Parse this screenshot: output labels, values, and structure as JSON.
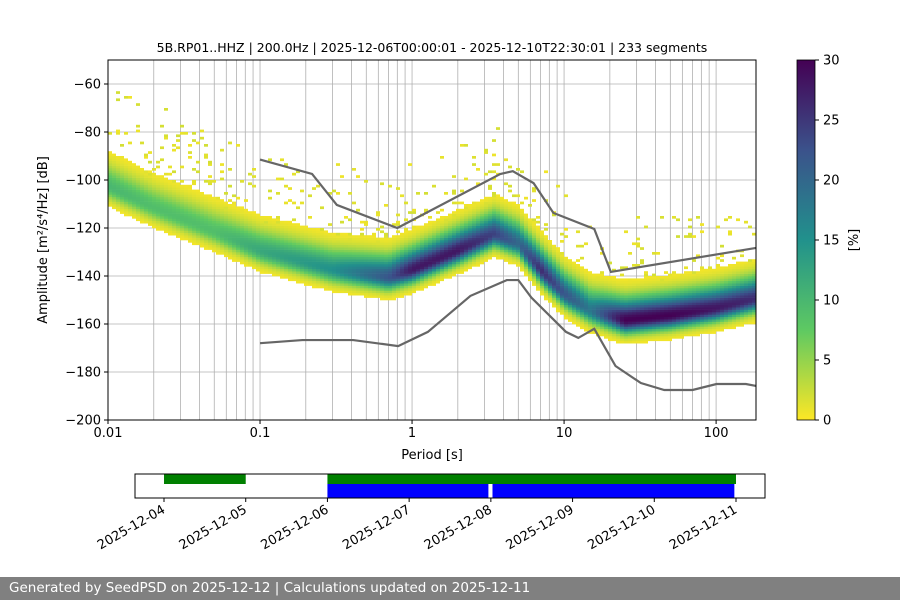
{
  "chart_data": {
    "type": "heatmap",
    "title": "5B.RP01..HHZ | 200.0Hz | 2025-12-06T00:00:01 - 2025-12-10T22:30:01 | 233 segments",
    "xlabel": "Period [s]",
    "ylabel": "Amplitude [m²/s⁴/Hz] [dB]",
    "xscale": "log",
    "xlim": [
      0.01,
      183
    ],
    "ylim": [
      -200,
      -50
    ],
    "xticks": [
      {
        "v": 0.01,
        "label": "0.01"
      },
      {
        "v": 0.1,
        "label": "0.1"
      },
      {
        "v": 1,
        "label": "1"
      },
      {
        "v": 10,
        "label": "10"
      },
      {
        "v": 100,
        "label": "100"
      }
    ],
    "yticks": [
      {
        "v": -200,
        "label": "−200"
      },
      {
        "v": -180,
        "label": "−180"
      },
      {
        "v": -160,
        "label": "−160"
      },
      {
        "v": -140,
        "label": "−140"
      },
      {
        "v": -120,
        "label": "−120"
      },
      {
        "v": -100,
        "label": "−100"
      },
      {
        "v": -80,
        "label": "−80"
      },
      {
        "v": -60,
        "label": "−60"
      }
    ],
    "grid": true,
    "colorbar": {
      "label": "[%]",
      "range": [
        0,
        30
      ],
      "ticks": [
        "0",
        "5",
        "10",
        "15",
        "20",
        "25",
        "30"
      ],
      "colormap": "viridis_r"
    },
    "pdf_mode": {
      "period": [
        0.01,
        0.02,
        0.05,
        0.1,
        0.3,
        0.7,
        1,
        2,
        3.5,
        5,
        7,
        10,
        15,
        25,
        50,
        100,
        183
      ],
      "db": [
        -103,
        -112,
        -122,
        -130,
        -138,
        -141,
        -138,
        -130,
        -123,
        -127,
        -138,
        -148,
        -155,
        -159,
        -157,
        -154,
        -150
      ],
      "peak_percent": [
        10,
        9,
        9,
        12,
        15,
        22,
        28,
        28,
        24,
        20,
        26,
        22,
        18,
        30,
        30,
        28,
        26
      ]
    },
    "nhnm": {
      "period": [
        0.1,
        0.22,
        0.32,
        0.8,
        3.8,
        4.6,
        6.3,
        8.5,
        15.8,
        20.3,
        183
      ],
      "db": [
        -91.5,
        -97.5,
        -110.4,
        -120,
        -97.5,
        -96.3,
        -101.3,
        -113.7,
        -120.4,
        -138.3,
        -128.3
      ]
    },
    "nlnm": {
      "period": [
        0.1,
        0.19,
        0.41,
        0.81,
        1.27,
        2.42,
        4.2,
        5.0,
        6.1,
        10.3,
        12.4,
        15.8,
        21.8,
        32,
        45.6,
        70,
        100.6,
        157,
        183
      ],
      "db": [
        -168,
        -166.7,
        -166.7,
        -169.2,
        -163.3,
        -148.3,
        -141.7,
        -141.7,
        -149,
        -163.3,
        -165.8,
        -162,
        -177.5,
        -184.6,
        -187.5,
        -187.5,
        -185,
        -185,
        -185.8
      ]
    },
    "colors": {
      "noise_model": "#666666",
      "data_available": "#008000",
      "psd_used": "#0000ff"
    }
  },
  "timeline": {
    "range_days_from_2025_12_04": [
      -0.355,
      7.355
    ],
    "ticks": [
      "2025-12-04",
      "2025-12-05",
      "2025-12-06",
      "2025-12-07",
      "2025-12-08",
      "2025-12-09",
      "2025-12-10",
      "2025-12-11"
    ],
    "data_available": [
      [
        0,
        1
      ],
      [
        2,
        7
      ]
    ],
    "psd_used": [
      [
        2,
        3.97
      ],
      [
        4.02,
        6.98
      ]
    ]
  },
  "footer": {
    "text": "Generated by SeedPSD on 2025-12-12 | Calculations updated on 2025-12-11"
  }
}
